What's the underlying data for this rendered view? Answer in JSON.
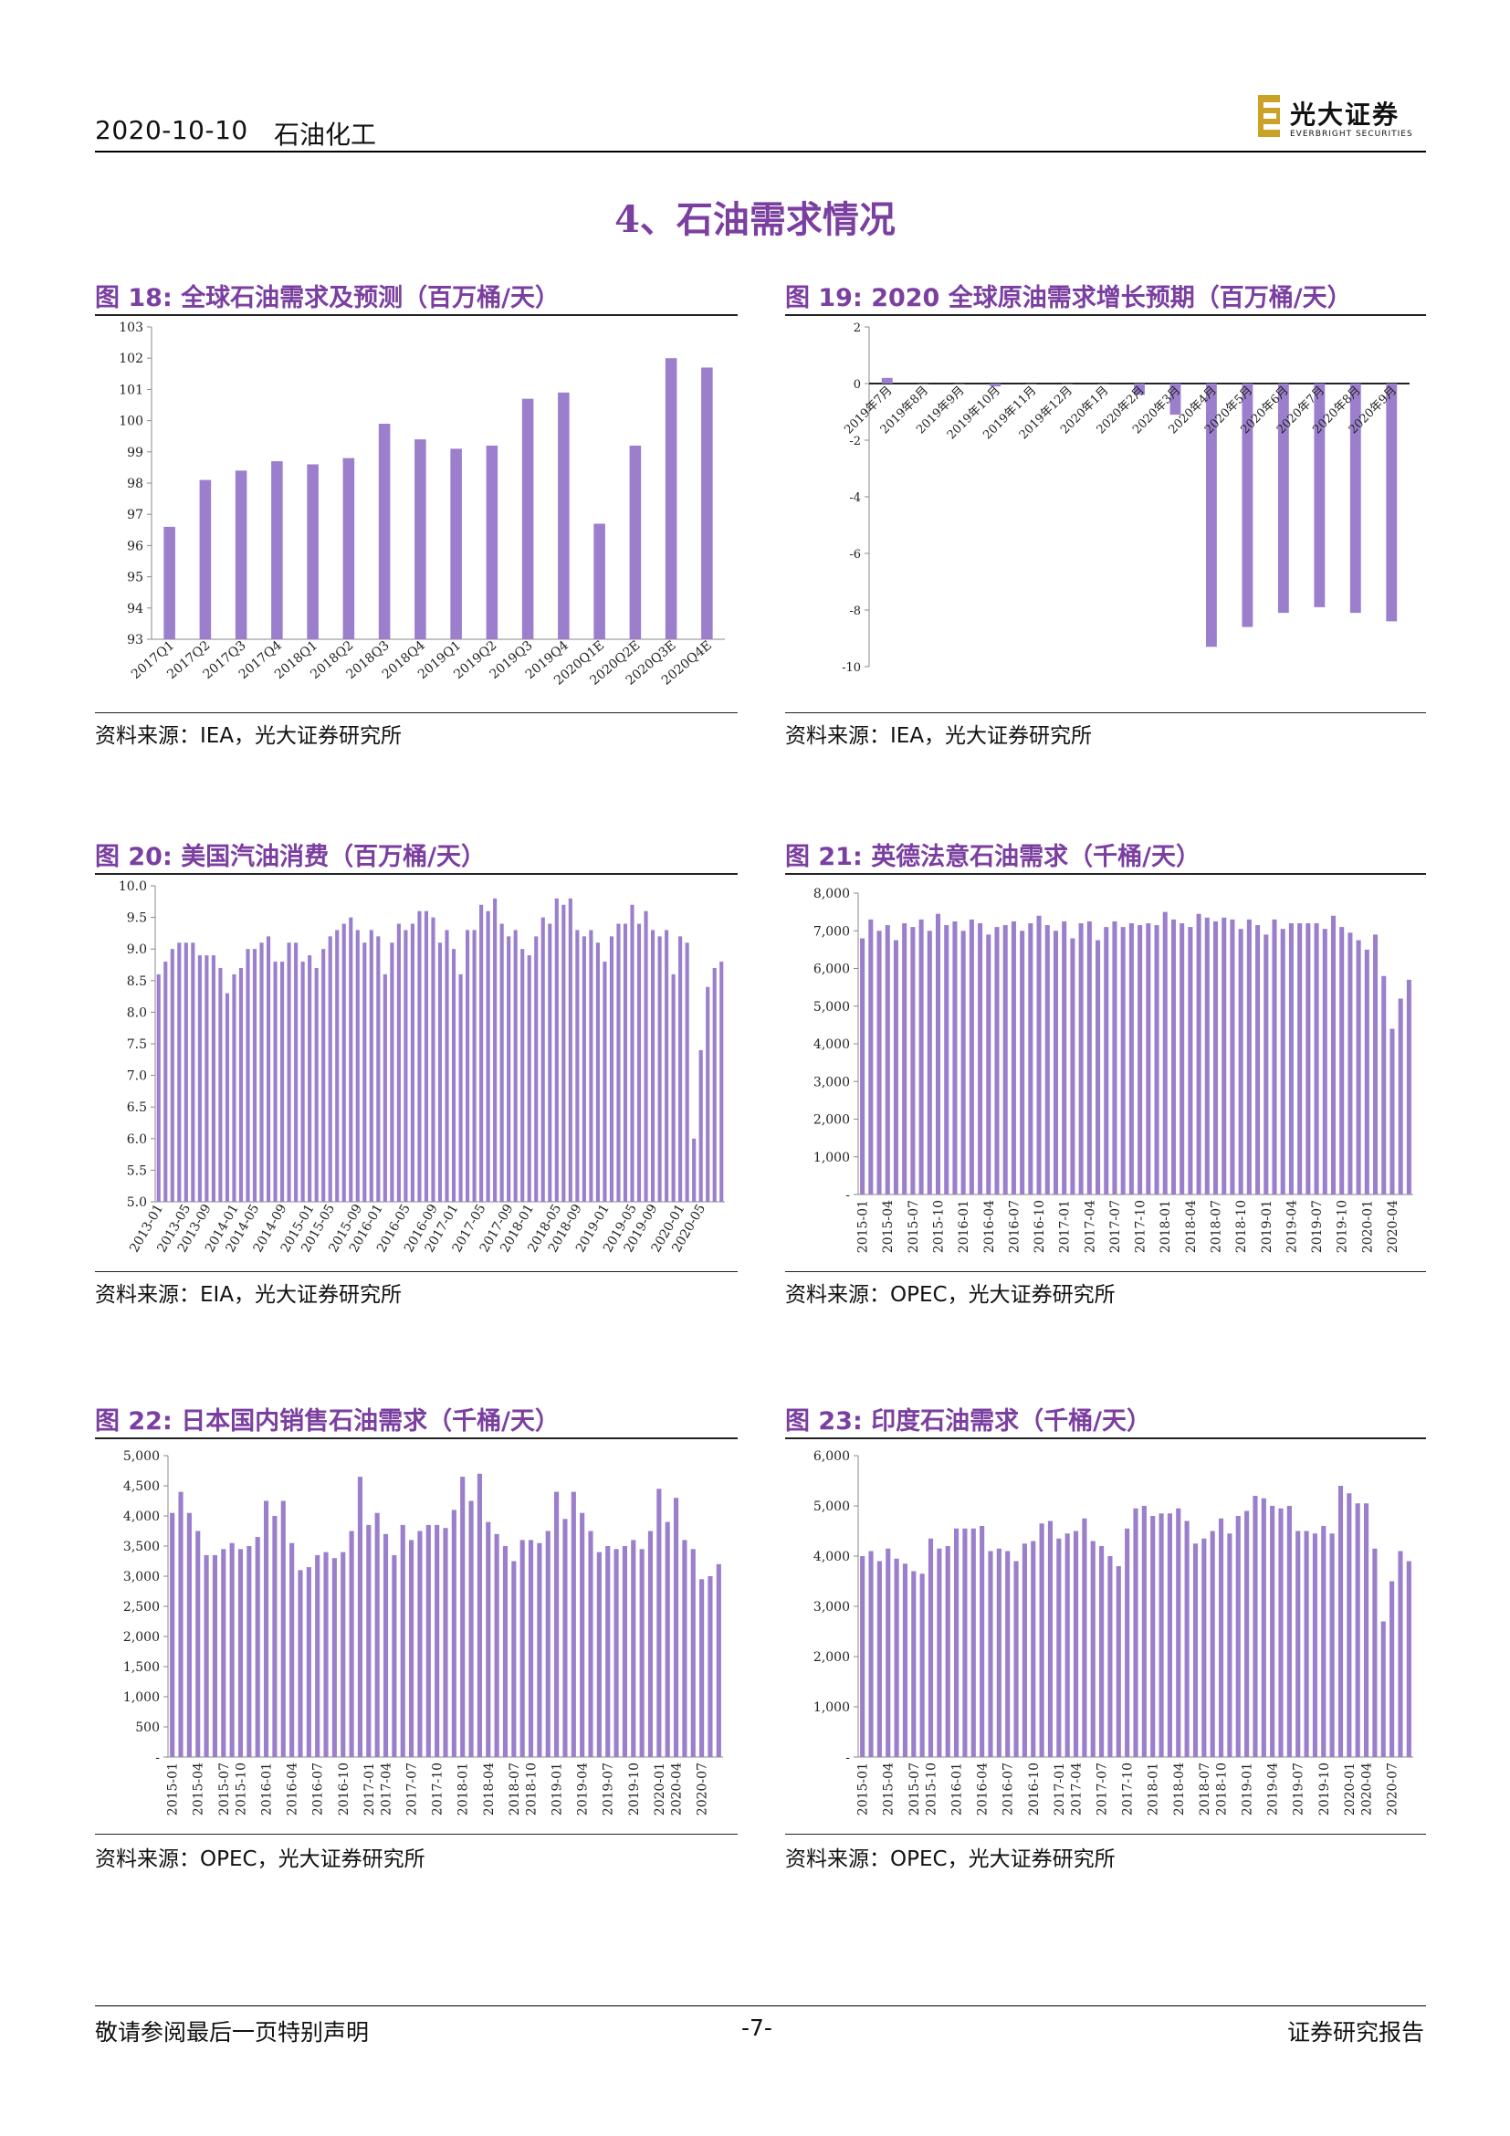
{
  "header": {
    "date": "2020-10-10",
    "sector": "石油化工",
    "logo_cn": "光大证券",
    "logo_en": "EVERBRIGHT SECURITIES"
  },
  "section_title": "4、石油需求情况",
  "figures": [
    {
      "label": "图 18:",
      "title": "全球石油需求及预测（百万桶/天）",
      "source": "资料来源：IEA，光大证券研究所"
    },
    {
      "label": "图 19:",
      "title": "2020 全球原油需求增长预期（百万桶/天）",
      "source": "资料来源：IEA，光大证券研究所"
    },
    {
      "label": "图 20:",
      "title": "美国汽油消费（百万桶/天）",
      "source": "资料来源：EIA，光大证券研究所"
    },
    {
      "label": "图 21:",
      "title": "英德法意石油需求（千桶/天）",
      "source": "资料来源：OPEC，光大证券研究所"
    },
    {
      "label": "图 22:",
      "title": "日本国内销售石油需求（千桶/天）",
      "source": "资料来源：OPEC，光大证券研究所"
    },
    {
      "label": "图 23:",
      "title": "印度石油需求（千桶/天）",
      "source": "资料来源：OPEC，光大证券研究所"
    }
  ],
  "footer": {
    "left": "敬请参阅最后一页特别声明",
    "page": "-7-",
    "right": "证券研究报告"
  },
  "colors": {
    "accent": "#7B3FA0",
    "bar": "#9B7FCC"
  },
  "chart_data": [
    {
      "type": "bar",
      "categories": [
        "2017Q1",
        "2017Q2",
        "2017Q3",
        "2017Q4",
        "2018Q1",
        "2018Q2",
        "2018Q3",
        "2018Q4",
        "2019Q1",
        "2019Q2",
        "2019Q3",
        "2019Q4",
        "2020Q1E",
        "2020Q2E",
        "2020Q3E",
        "2020Q4E"
      ],
      "values": [
        96.6,
        98.1,
        98.4,
        98.7,
        98.6,
        98.8,
        99.9,
        99.4,
        99.1,
        99.2,
        100.7,
        100.9,
        96.7,
        99.2,
        102.0,
        101.7
      ],
      "ylim": [
        93,
        103
      ],
      "yticks": [
        "93",
        "94",
        "95",
        "96",
        "97",
        "98",
        "99",
        "100",
        "101",
        "102",
        "103"
      ]
    },
    {
      "type": "bar",
      "categories": [
        "2019年7月",
        "2019年8月",
        "2019年9月",
        "2019年10月",
        "2019年11月",
        "2019年12月",
        "2020年1月",
        "2020年2月",
        "2020年3月",
        "2020年4月",
        "2020年5月",
        "2020年6月",
        "2020年7月",
        "2020年8月",
        "2020年9月"
      ],
      "values": [
        0.2,
        0.0,
        0.0,
        -0.1,
        0.0,
        0.0,
        0.0,
        -0.4,
        -1.1,
        -9.3,
        -8.6,
        -8.1,
        -7.9,
        -8.1,
        -8.4
      ],
      "ylim": [
        -10,
        2
      ],
      "yticks": [
        "2",
        "0",
        "-2",
        "-4",
        "-6",
        "-8",
        "-10"
      ]
    },
    {
      "type": "bar",
      "xticks": [
        "2013-01",
        "2013-05",
        "2013-09",
        "2014-01",
        "2014-05",
        "2014-09",
        "2015-01",
        "2015-05",
        "2015-09",
        "2016-01",
        "2016-05",
        "2016-09",
        "2017-01",
        "2017-05",
        "2017-09",
        "2018-01",
        "2018-05",
        "2018-09",
        "2019-01",
        "2019-05",
        "2019-09",
        "2020-01",
        "2020-05"
      ],
      "values": [
        8.6,
        8.8,
        9.0,
        9.1,
        9.1,
        9.1,
        8.9,
        8.9,
        8.9,
        8.7,
        8.3,
        8.6,
        8.7,
        9.0,
        9.0,
        9.1,
        9.2,
        8.8,
        8.8,
        9.1,
        9.1,
        8.8,
        8.9,
        8.7,
        9.0,
        9.2,
        9.3,
        9.4,
        9.5,
        9.3,
        9.1,
        9.3,
        9.2,
        8.6,
        9.1,
        9.4,
        9.3,
        9.4,
        9.6,
        9.6,
        9.5,
        9.1,
        9.3,
        9.0,
        8.6,
        9.3,
        9.3,
        9.7,
        9.6,
        9.8,
        9.4,
        9.2,
        9.3,
        9.0,
        8.9,
        9.2,
        9.5,
        9.4,
        9.8,
        9.7,
        9.8,
        9.3,
        9.2,
        9.3,
        9.1,
        8.8,
        9.2,
        9.4,
        9.4,
        9.7,
        9.4,
        9.6,
        9.3,
        9.2,
        9.3,
        8.6,
        9.2,
        9.1,
        6.0,
        7.4,
        8.4,
        8.7,
        8.8
      ],
      "ylim": [
        5.0,
        10.0
      ],
      "yticks": [
        "5.0",
        "5.5",
        "6.0",
        "6.5",
        "7.0",
        "7.5",
        "8.0",
        "8.5",
        "9.0",
        "9.5",
        "10.0"
      ]
    },
    {
      "type": "bar",
      "xticks": [
        "2015-01",
        "2015-04",
        "2015-07",
        "2015-10",
        "2016-01",
        "2016-04",
        "2016-07",
        "2016-10",
        "2017-01",
        "2017-04",
        "2017-07",
        "2017-10",
        "2018-01",
        "2018-04",
        "2018-07",
        "2018-10",
        "2019-01",
        "2019-04",
        "2019-07",
        "2019-10",
        "2020-01",
        "2020-04"
      ],
      "values": [
        6800,
        7300,
        7000,
        7150,
        6750,
        7200,
        7100,
        7300,
        7000,
        7450,
        7150,
        7250,
        7000,
        7300,
        7200,
        6900,
        7100,
        7150,
        7250,
        7000,
        7200,
        7400,
        7150,
        7000,
        7250,
        6800,
        7200,
        7250,
        6750,
        7100,
        7250,
        7100,
        7200,
        7150,
        7200,
        7150,
        7500,
        7300,
        7200,
        7100,
        7450,
        7350,
        7250,
        7350,
        7300,
        7050,
        7300,
        7150,
        6900,
        7300,
        7050,
        7200,
        7200,
        7200,
        7200,
        7050,
        7400,
        7100,
        6950,
        6750,
        6500,
        6900,
        5800,
        4400,
        5200,
        5700
      ],
      "ylim": [
        0,
        8000
      ],
      "yticks": [
        "-",
        "1,000",
        "2,000",
        "3,000",
        "4,000",
        "5,000",
        "6,000",
        "7,000",
        "8,000"
      ]
    },
    {
      "type": "bar",
      "xticks": [
        "2015-01",
        "2015-04",
        "2015-07",
        "2015-10",
        "2016-01",
        "2016-04",
        "2016-07",
        "2016-10",
        "2017-01",
        "2017-04",
        "2017-07",
        "2017-10",
        "2018-01",
        "2018-04",
        "2018-07",
        "2018-10",
        "2019-01",
        "2019-04",
        "2019-07",
        "2019-10",
        "2020-01",
        "2020-04",
        "2020-07"
      ],
      "values": [
        4050,
        4400,
        4050,
        3750,
        3350,
        3350,
        3450,
        3550,
        3450,
        3500,
        3650,
        4250,
        4000,
        4250,
        3550,
        3100,
        3150,
        3350,
        3400,
        3300,
        3400,
        3750,
        4650,
        3850,
        4050,
        3700,
        3350,
        3850,
        3600,
        3750,
        3850,
        3850,
        3800,
        4100,
        4650,
        4250,
        4700,
        3900,
        3700,
        3500,
        3250,
        3600,
        3600,
        3550,
        3750,
        4400,
        3950,
        4400,
        4050,
        3750,
        3400,
        3500,
        3450,
        3500,
        3600,
        3450,
        3750,
        4450,
        3900,
        4300,
        3600,
        3450,
        2950,
        3000,
        3200
      ],
      "ylim": [
        0,
        5000
      ],
      "yticks": [
        "-",
        "500",
        "1,000",
        "1,500",
        "2,000",
        "2,500",
        "3,000",
        "3,500",
        "4,000",
        "4,500",
        "5,000"
      ]
    },
    {
      "type": "bar",
      "xticks": [
        "2015-01",
        "2015-04",
        "2015-07",
        "2015-10",
        "2016-01",
        "2016-04",
        "2016-07",
        "2016-10",
        "2017-01",
        "2017-04",
        "2017-07",
        "2017-10",
        "2018-01",
        "2018-04",
        "2018-07",
        "2018-10",
        "2019-01",
        "2019-04",
        "2019-07",
        "2019-10",
        "2020-01",
        "2020-04",
        "2020-07"
      ],
      "values": [
        4000,
        4100,
        3900,
        4150,
        3950,
        3850,
        3700,
        3650,
        4350,
        4150,
        4200,
        4550,
        4550,
        4550,
        4600,
        4100,
        4150,
        4100,
        3900,
        4250,
        4300,
        4650,
        4700,
        4350,
        4450,
        4500,
        4750,
        4300,
        4200,
        4000,
        3800,
        4550,
        4950,
        5000,
        4800,
        4850,
        4850,
        4950,
        4700,
        4250,
        4350,
        4500,
        4750,
        4450,
        4800,
        4900,
        5200,
        5150,
        5000,
        4950,
        5000,
        4500,
        4500,
        4450,
        4600,
        4450,
        5400,
        5250,
        5050,
        5050,
        4150,
        2700,
        3500,
        4100,
        3900
      ],
      "ylim": [
        0,
        6000
      ],
      "yticks": [
        "-",
        "1,000",
        "2,000",
        "3,000",
        "4,000",
        "5,000",
        "6,000"
      ]
    }
  ]
}
